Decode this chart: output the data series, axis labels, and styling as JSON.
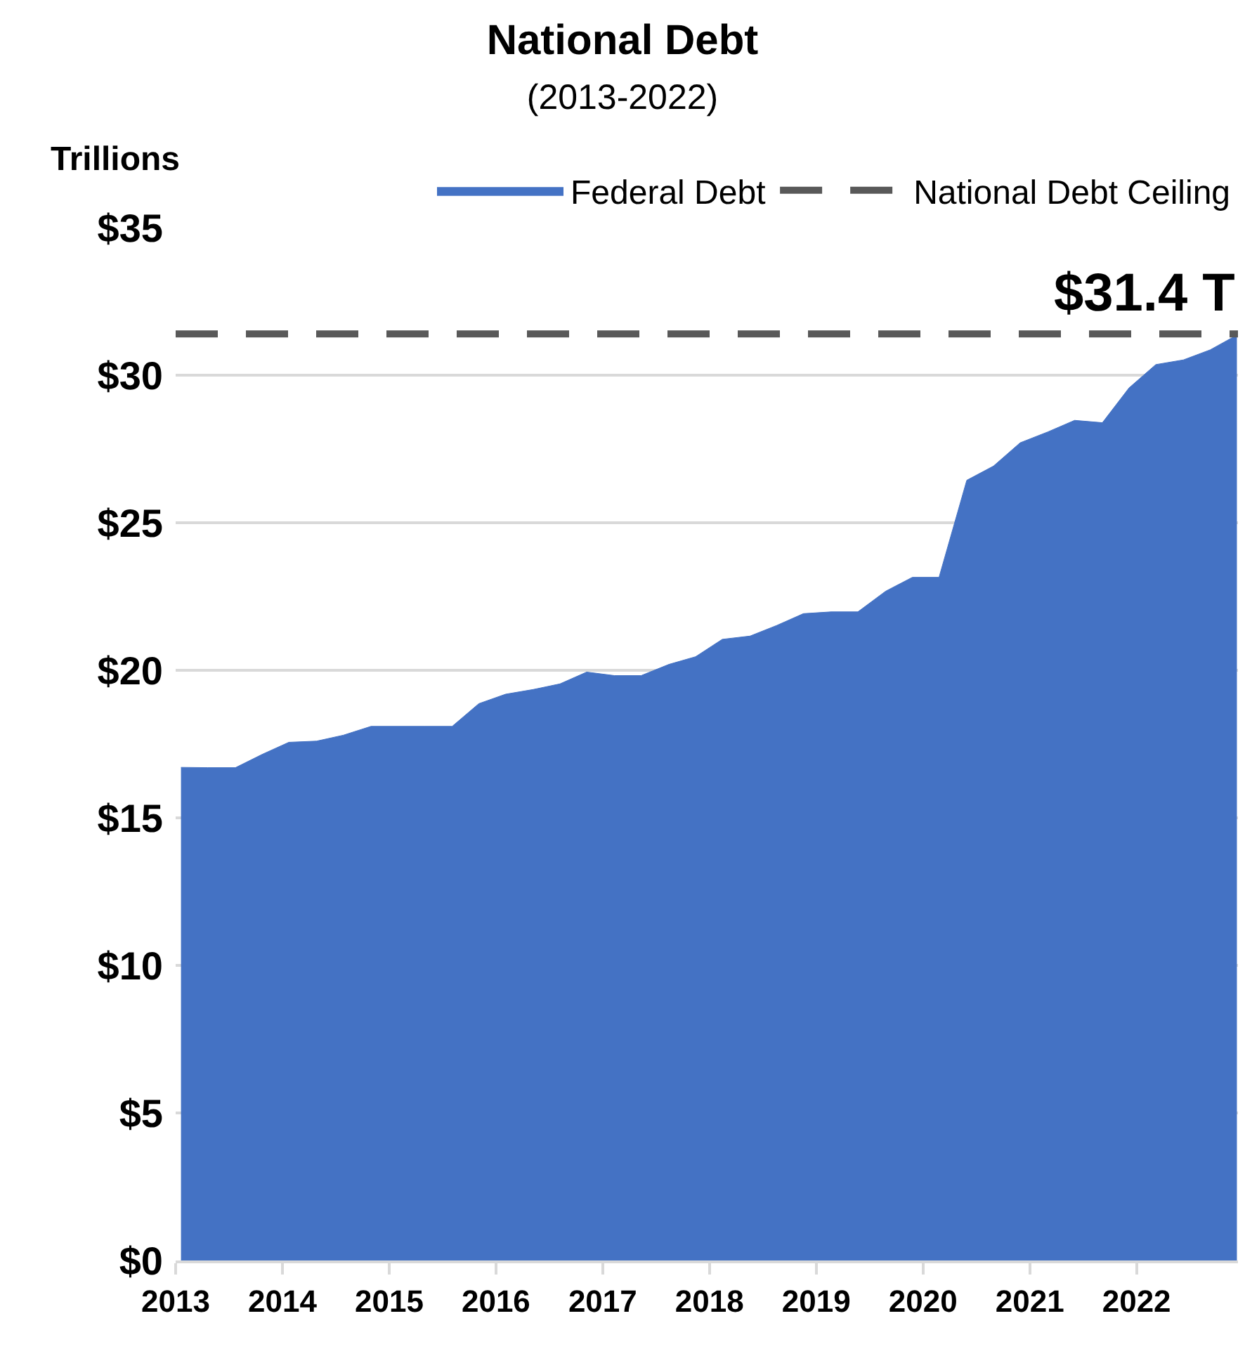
{
  "chart_data": {
    "type": "area",
    "title": "National Debt",
    "subtitle": "(2013-2022)",
    "ylabel": "Trillions",
    "x": [
      2013.05,
      2013.3,
      2013.56,
      2013.81,
      2014.06,
      2014.32,
      2014.57,
      2014.83,
      2015.08,
      2015.33,
      2015.59,
      2015.84,
      2016.09,
      2016.35,
      2016.6,
      2016.85,
      2017.11,
      2017.36,
      2017.62,
      2017.87,
      2018.12,
      2018.38,
      2018.63,
      2018.88,
      2019.14,
      2019.39,
      2019.65,
      2019.9,
      2020.15,
      2020.41,
      2020.66,
      2020.91,
      2021.17,
      2021.42,
      2021.68,
      2021.93,
      2022.18,
      2022.44,
      2022.69,
      2022.94
    ],
    "series": [
      {
        "name": "Federal Debt",
        "color": "#4472c4",
        "values": [
          16.71,
          16.7,
          16.7,
          17.15,
          17.56,
          17.6,
          17.8,
          18.1,
          18.1,
          18.1,
          18.1,
          18.87,
          19.19,
          19.35,
          19.54,
          19.94,
          19.82,
          19.82,
          20.2,
          20.46,
          21.05,
          21.16,
          21.52,
          21.92,
          21.98,
          21.98,
          22.68,
          23.15,
          23.15,
          26.44,
          26.92,
          27.71,
          28.08,
          28.47,
          28.39,
          29.57,
          30.36,
          30.52,
          30.86,
          31.36
        ]
      },
      {
        "name": "National Debt Ceiling",
        "type": "line",
        "color": "#595959",
        "line_style": "dashed",
        "x": [
          2013,
          2022.95
        ],
        "values": [
          31.4,
          31.4
        ]
      }
    ],
    "annotations": [
      {
        "text": "$31.4 T",
        "x": 2022.95,
        "y": 31.4
      }
    ],
    "xlim": [
      2013,
      2022.95
    ],
    "xticks": [
      2013,
      2014,
      2015,
      2016,
      2017,
      2018,
      2019,
      2020,
      2021,
      2022
    ],
    "ylim": [
      0,
      35
    ],
    "yticks": [
      {
        "value": 0,
        "label": "$0"
      },
      {
        "value": 5,
        "label": "$5"
      },
      {
        "value": 10,
        "label": "$10"
      },
      {
        "value": 15,
        "label": "$15"
      },
      {
        "value": 20,
        "label": "$20"
      },
      {
        "value": 25,
        "label": "$25"
      },
      {
        "value": 30,
        "label": "$30"
      },
      {
        "value": 35,
        "label": "$35"
      }
    ],
    "grid": "y",
    "legend": "top",
    "marker": "none"
  }
}
